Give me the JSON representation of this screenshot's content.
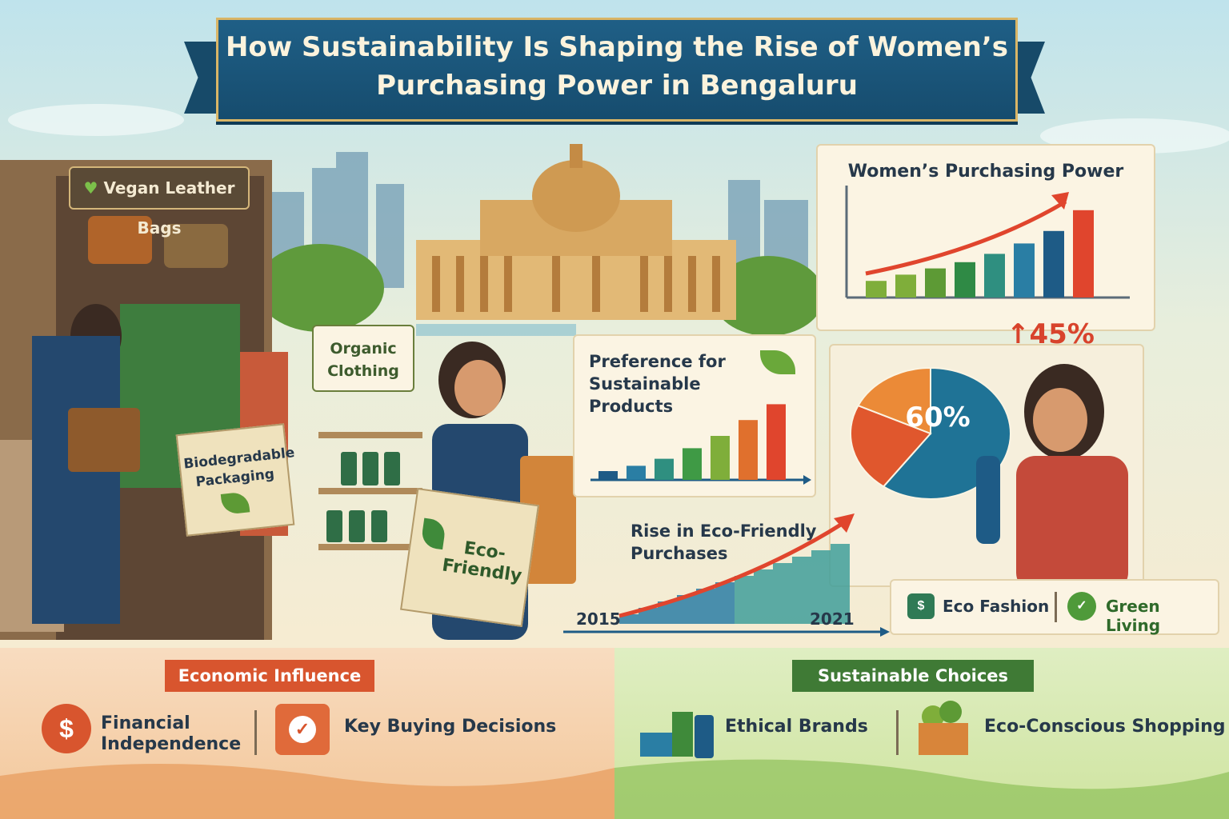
{
  "title": {
    "line1": "How Sustainability Is Shaping the Rise of Women’s",
    "line2": "Purchasing Power in Bengaluru"
  },
  "scene": {
    "shop_sign": "Vegan Leather Bags",
    "organic_sign": "Organic Clothing",
    "bag_left": "Biodegradable Packaging",
    "bag_right": "Eco-Friendly"
  },
  "purchasing_chart": {
    "title": "Women’s Purchasing Power",
    "callout": "45%",
    "bars": [
      0.16,
      0.22,
      0.28,
      0.34,
      0.42,
      0.52,
      0.64,
      0.84
    ],
    "colors": [
      "#7fae3a",
      "#7fae3a",
      "#5d9a35",
      "#2f8a45",
      "#2f8f80",
      "#2a7ea4",
      "#1e5b86",
      "#e0452d"
    ]
  },
  "preference_chart": {
    "title": "Preference for Sustainable Products",
    "bars": [
      0.1,
      0.16,
      0.24,
      0.36,
      0.5,
      0.68,
      0.86
    ],
    "colors": [
      "#1e5b86",
      "#2a7ea4",
      "#2f8f80",
      "#3f9a45",
      "#7fae3a",
      "#e0702d",
      "#e0452d"
    ]
  },
  "pie": {
    "label": "60%",
    "slices": [
      {
        "value": 60,
        "color": "#1f7396"
      },
      {
        "value": 22,
        "color": "#e0572d"
      },
      {
        "value": 18,
        "color": "#eb8a37"
      }
    ]
  },
  "eco_chart": {
    "title": "Rise in Eco-Friendly Purchases",
    "start_year": "2015",
    "end_year": "2021"
  },
  "legend": {
    "eco_fashion": "Eco Fashion",
    "green_living": "Green Living"
  },
  "economic": {
    "header": "Economic Influence",
    "items": [
      "Financial Independence",
      "Key Buying Decisions"
    ]
  },
  "sustainable": {
    "header": "Sustainable Choices",
    "items": [
      "Ethical Brands",
      "Eco-Conscious Shopping"
    ]
  }
}
